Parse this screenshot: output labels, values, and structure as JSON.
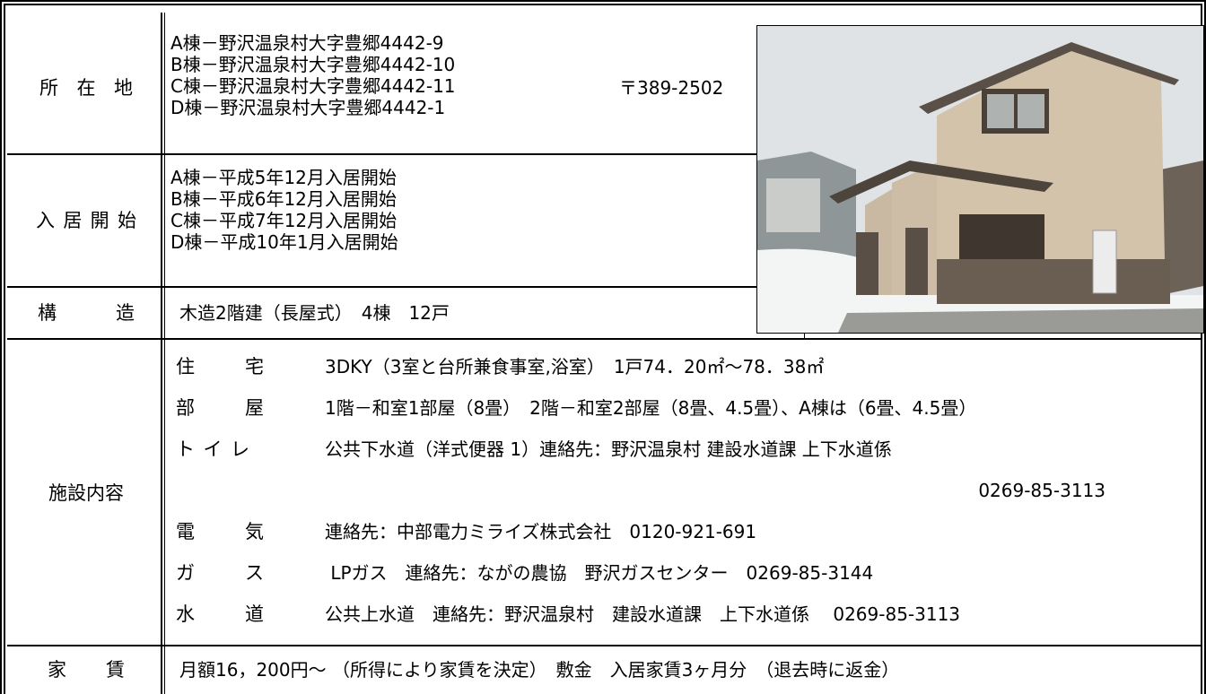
{
  "location": {
    "label": "所 在 地",
    "lines": [
      "A棟－野沢温泉村大字豊郷4442-9",
      "B棟－野沢温泉村大字豊郷4442-10",
      "C棟－野沢温泉村大字豊郷4442-11",
      "D棟－野沢温泉村大字豊郷4442-1"
    ],
    "postal": "〒389-2502"
  },
  "move_in": {
    "label": "入居開始",
    "lines": [
      "A棟－平成5年12月入居開始",
      "B棟－平成6年12月入居開始",
      "C棟－平成7年12月入居開始",
      "D棟－平成10年1月入居開始"
    ]
  },
  "structure": {
    "label": "構 造",
    "text": "木造2階建（長屋式）　4棟　12戸"
  },
  "facilities": {
    "label": "施設内容",
    "items": [
      {
        "name": "住 宅",
        "text": "3DKY（3室と台所兼食事室,浴室）　1戸74．20㎡～78．38㎡"
      },
      {
        "name": "部 屋",
        "text": "1階－和室1部屋（8畳）　2階－和室2部屋（8畳、4.5畳）、A棟は（6畳、4.5畳）"
      },
      {
        "name": "ト イ レ",
        "text": "公共下水道（洋式便器 1）連絡先：野沢温泉村 建設水道課 上下水道係",
        "phone": "0269-85-3113"
      },
      {
        "name": "電 気",
        "text": "連絡先：中部電力ミライズ株式会社　0120-921-691"
      },
      {
        "name": "ガ ス",
        "text": " LPガス　連絡先：ながの農協　野沢ガスセンター　0269-85-3144"
      },
      {
        "name": "水 道",
        "text": "公共上水道　連絡先：野沢温泉村　建設水道課　上下水道係　 0269-85-3113"
      }
    ]
  },
  "rent": {
    "label": "家 賃",
    "text": "月額16，200円～ （所得により家賃を決定）　敷金　入居家賃3ヶ月分　（退去時に返金）"
  }
}
